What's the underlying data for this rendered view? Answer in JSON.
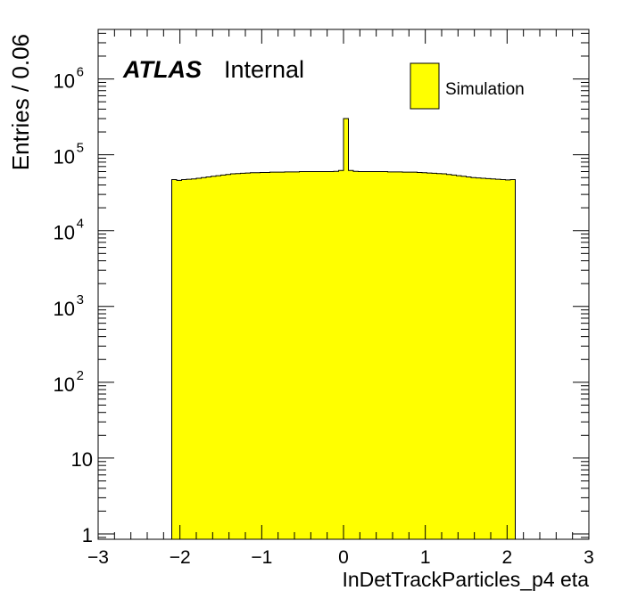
{
  "chart_data": {
    "type": "histogram",
    "xlabel": "InDetTrackParticles_p4 eta",
    "ylabel": "Entries / 0.06",
    "xlim": [
      -3,
      3
    ],
    "ylim": [
      0.85,
      4500000
    ],
    "yscale": "log",
    "grid": false,
    "bin_width": 0.06,
    "atlas_label": "ATLAS",
    "atlas_status": "Internal",
    "legend": {
      "placement": "top-right",
      "entries": [
        {
          "name": "Simulation",
          "color": "#ffff00"
        }
      ]
    },
    "fill_color": "#ffff00",
    "x_ticks": [
      {
        "value": -3,
        "label": "−3"
      },
      {
        "value": -2,
        "label": "−2"
      },
      {
        "value": -1,
        "label": "−1"
      },
      {
        "value": 0,
        "label": "0"
      },
      {
        "value": 1,
        "label": "1"
      },
      {
        "value": 2,
        "label": "2"
      },
      {
        "value": 3,
        "label": "3"
      }
    ],
    "y_ticks": [
      {
        "value": 1,
        "base": "1",
        "exp": ""
      },
      {
        "value": 10,
        "base": "10",
        "exp": ""
      },
      {
        "value": 100,
        "base": "10",
        "exp": "2"
      },
      {
        "value": 1000,
        "base": "10",
        "exp": "3"
      },
      {
        "value": 10000,
        "base": "10",
        "exp": "4"
      },
      {
        "value": 100000,
        "base": "10",
        "exp": "5"
      },
      {
        "value": 1000000,
        "base": "10",
        "exp": "6"
      }
    ],
    "bins": [
      {
        "x0": -2.1,
        "x1": -2.04,
        "y": 47000
      },
      {
        "x0": -2.04,
        "x1": -1.98,
        "y": 46000
      },
      {
        "x0": -1.98,
        "x1": -1.92,
        "y": 47000
      },
      {
        "x0": -1.92,
        "x1": -1.86,
        "y": 47500
      },
      {
        "x0": -1.86,
        "x1": -1.8,
        "y": 48000
      },
      {
        "x0": -1.8,
        "x1": -1.74,
        "y": 49000
      },
      {
        "x0": -1.74,
        "x1": -1.68,
        "y": 50000
      },
      {
        "x0": -1.68,
        "x1": -1.62,
        "y": 51000
      },
      {
        "x0": -1.62,
        "x1": -1.56,
        "y": 52000
      },
      {
        "x0": -1.56,
        "x1": -1.5,
        "y": 53000
      },
      {
        "x0": -1.5,
        "x1": -1.44,
        "y": 54000
      },
      {
        "x0": -1.44,
        "x1": -1.38,
        "y": 55000
      },
      {
        "x0": -1.38,
        "x1": -1.32,
        "y": 56000
      },
      {
        "x0": -1.32,
        "x1": -1.26,
        "y": 56500
      },
      {
        "x0": -1.26,
        "x1": -1.2,
        "y": 57000
      },
      {
        "x0": -1.2,
        "x1": -1.14,
        "y": 57500
      },
      {
        "x0": -1.14,
        "x1": -1.08,
        "y": 58000
      },
      {
        "x0": -1.08,
        "x1": -1.02,
        "y": 58000
      },
      {
        "x0": -1.02,
        "x1": -0.96,
        "y": 58500
      },
      {
        "x0": -0.96,
        "x1": -0.9,
        "y": 58500
      },
      {
        "x0": -0.9,
        "x1": -0.84,
        "y": 59000
      },
      {
        "x0": -0.84,
        "x1": -0.78,
        "y": 59000
      },
      {
        "x0": -0.78,
        "x1": -0.72,
        "y": 59000
      },
      {
        "x0": -0.72,
        "x1": -0.66,
        "y": 59500
      },
      {
        "x0": -0.66,
        "x1": -0.6,
        "y": 59500
      },
      {
        "x0": -0.6,
        "x1": -0.54,
        "y": 59500
      },
      {
        "x0": -0.54,
        "x1": -0.48,
        "y": 60000
      },
      {
        "x0": -0.48,
        "x1": -0.42,
        "y": 60000
      },
      {
        "x0": -0.42,
        "x1": -0.36,
        "y": 60000
      },
      {
        "x0": -0.36,
        "x1": -0.3,
        "y": 60000
      },
      {
        "x0": -0.3,
        "x1": -0.24,
        "y": 60000
      },
      {
        "x0": -0.24,
        "x1": -0.18,
        "y": 60000
      },
      {
        "x0": -0.18,
        "x1": -0.12,
        "y": 60000
      },
      {
        "x0": -0.12,
        "x1": -0.06,
        "y": 60500
      },
      {
        "x0": -0.06,
        "x1": 0.0,
        "y": 62000
      },
      {
        "x0": 0.0,
        "x1": 0.06,
        "y": 300000
      },
      {
        "x0": 0.06,
        "x1": 0.12,
        "y": 62000
      },
      {
        "x0": 0.12,
        "x1": 0.18,
        "y": 60500
      },
      {
        "x0": 0.18,
        "x1": 0.24,
        "y": 60000
      },
      {
        "x0": 0.24,
        "x1": 0.3,
        "y": 60000
      },
      {
        "x0": 0.3,
        "x1": 0.36,
        "y": 60000
      },
      {
        "x0": 0.36,
        "x1": 0.42,
        "y": 60000
      },
      {
        "x0": 0.42,
        "x1": 0.48,
        "y": 60000
      },
      {
        "x0": 0.48,
        "x1": 0.54,
        "y": 60000
      },
      {
        "x0": 0.54,
        "x1": 0.6,
        "y": 59500
      },
      {
        "x0": 0.6,
        "x1": 0.66,
        "y": 59500
      },
      {
        "x0": 0.66,
        "x1": 0.72,
        "y": 59500
      },
      {
        "x0": 0.72,
        "x1": 0.78,
        "y": 59000
      },
      {
        "x0": 0.78,
        "x1": 0.84,
        "y": 59000
      },
      {
        "x0": 0.84,
        "x1": 0.9,
        "y": 59000
      },
      {
        "x0": 0.9,
        "x1": 0.96,
        "y": 58500
      },
      {
        "x0": 0.96,
        "x1": 1.02,
        "y": 58000
      },
      {
        "x0": 1.02,
        "x1": 1.08,
        "y": 57500
      },
      {
        "x0": 1.08,
        "x1": 1.14,
        "y": 57000
      },
      {
        "x0": 1.14,
        "x1": 1.2,
        "y": 56500
      },
      {
        "x0": 1.2,
        "x1": 1.26,
        "y": 56000
      },
      {
        "x0": 1.26,
        "x1": 1.32,
        "y": 55000
      },
      {
        "x0": 1.32,
        "x1": 1.38,
        "y": 54000
      },
      {
        "x0": 1.38,
        "x1": 1.44,
        "y": 53000
      },
      {
        "x0": 1.44,
        "x1": 1.5,
        "y": 52000
      },
      {
        "x0": 1.5,
        "x1": 1.56,
        "y": 51000
      },
      {
        "x0": 1.56,
        "x1": 1.62,
        "y": 50000
      },
      {
        "x0": 1.62,
        "x1": 1.68,
        "y": 49500
      },
      {
        "x0": 1.68,
        "x1": 1.74,
        "y": 49000
      },
      {
        "x0": 1.74,
        "x1": 1.8,
        "y": 48500
      },
      {
        "x0": 1.8,
        "x1": 1.86,
        "y": 48000
      },
      {
        "x0": 1.86,
        "x1": 1.92,
        "y": 47500
      },
      {
        "x0": 1.92,
        "x1": 1.98,
        "y": 47000
      },
      {
        "x0": 1.98,
        "x1": 2.04,
        "y": 46500
      },
      {
        "x0": 2.04,
        "x1": 2.1,
        "y": 47000
      }
    ]
  }
}
